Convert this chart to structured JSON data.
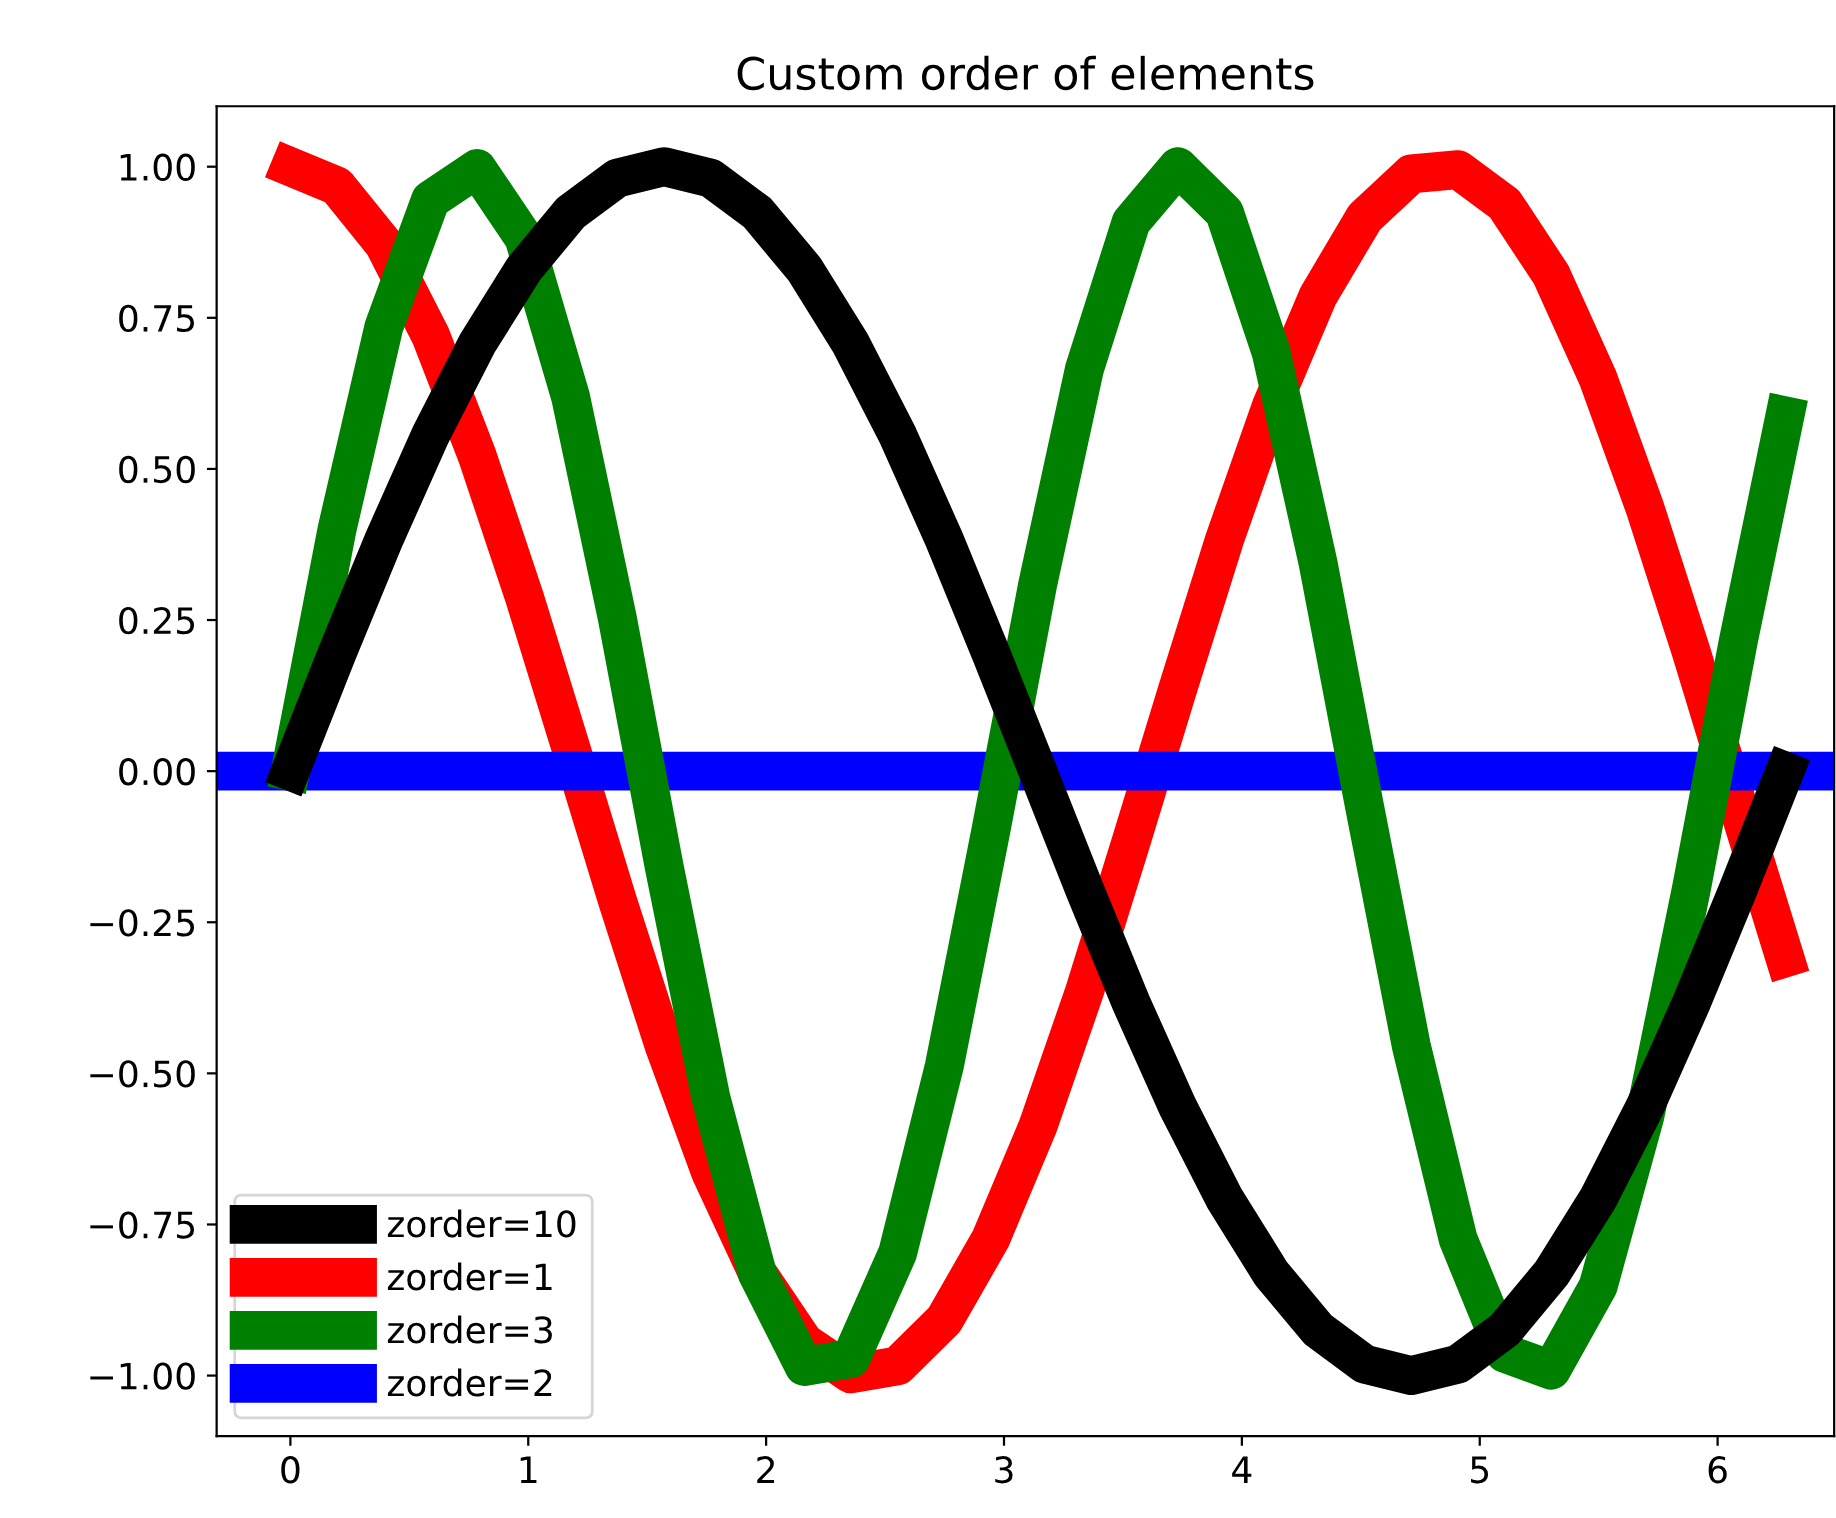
{
  "chart_data": {
    "type": "line",
    "title": "Custom order of elements",
    "x": [
      0,
      0.196,
      0.393,
      0.589,
      0.785,
      0.982,
      1.178,
      1.374,
      1.571,
      1.767,
      1.963,
      2.16,
      2.356,
      2.553,
      2.749,
      2.945,
      3.142,
      3.338,
      3.534,
      3.731,
      3.927,
      4.123,
      4.32,
      4.516,
      4.712,
      4.909,
      5.105,
      5.301,
      5.498,
      5.694,
      5.89,
      6.087,
      6.283
    ],
    "series": [
      {
        "name": "zorder=10",
        "color": "#000000",
        "values": [
          0,
          0.195,
          0.383,
          0.556,
          0.707,
          0.831,
          0.924,
          0.981,
          1,
          0.981,
          0.924,
          0.831,
          0.707,
          0.556,
          0.383,
          0.195,
          0,
          -0.195,
          -0.383,
          -0.556,
          -0.707,
          -0.831,
          -0.924,
          -0.981,
          -1,
          -0.981,
          -0.924,
          -0.831,
          -0.707,
          -0.556,
          -0.383,
          -0.195,
          0
        ]
      },
      {
        "name": "zorder=1",
        "color": "#ff0000",
        "values": [
          1,
          0.968,
          0.872,
          0.721,
          0.522,
          0.29,
          0.04,
          -0.213,
          -0.454,
          -0.664,
          -0.83,
          -0.945,
          -0.997,
          -0.984,
          -0.908,
          -0.773,
          -0.588,
          -0.365,
          -0.117,
          0.137,
          0.383,
          0.603,
          0.786,
          0.916,
          0.988,
          0.995,
          0.938,
          0.821,
          0.649,
          0.436,
          0.196,
          -0.059,
          -0.309
        ]
      },
      {
        "name": "zorder=3",
        "color": "#008000",
        "values": [
          0,
          0.4,
          0.735,
          0.945,
          0.997,
          0.882,
          0.619,
          0.254,
          -0.157,
          -0.539,
          -0.831,
          -0.985,
          -0.972,
          -0.797,
          -0.488,
          -0.098,
          0.31,
          0.665,
          0.908,
          1,
          0.924,
          0.693,
          0.345,
          -0.059,
          -0.454,
          -0.774,
          -0.963,
          -0.991,
          -0.852,
          -0.571,
          -0.194,
          0.215,
          0.588
        ]
      },
      {
        "name": "zorder=2",
        "color": "#0000ff",
        "x": [
          -0.31,
          6.49
        ],
        "values": [
          0,
          0
        ]
      }
    ],
    "xlim": [
      -0.31,
      6.49
    ],
    "xticks": [
      0,
      1,
      2,
      3,
      4,
      5,
      6
    ],
    "ylim": [
      -1.1,
      1.1
    ],
    "yticks": [
      {
        "value": -1,
        "label": "−1.00"
      },
      {
        "value": -0.75,
        "label": "−0.75"
      },
      {
        "value": -0.5,
        "label": "−0.50"
      },
      {
        "value": -0.25,
        "label": "−0.25"
      },
      {
        "value": 0,
        "label": "0.00"
      },
      {
        "value": 0.25,
        "label": "0.25"
      },
      {
        "value": 0.5,
        "label": "0.50"
      },
      {
        "value": 0.75,
        "label": "0.75"
      },
      {
        "value": 1,
        "label": "1.00"
      }
    ],
    "legend": "lower left",
    "grid": false,
    "line_style": "solid"
  }
}
